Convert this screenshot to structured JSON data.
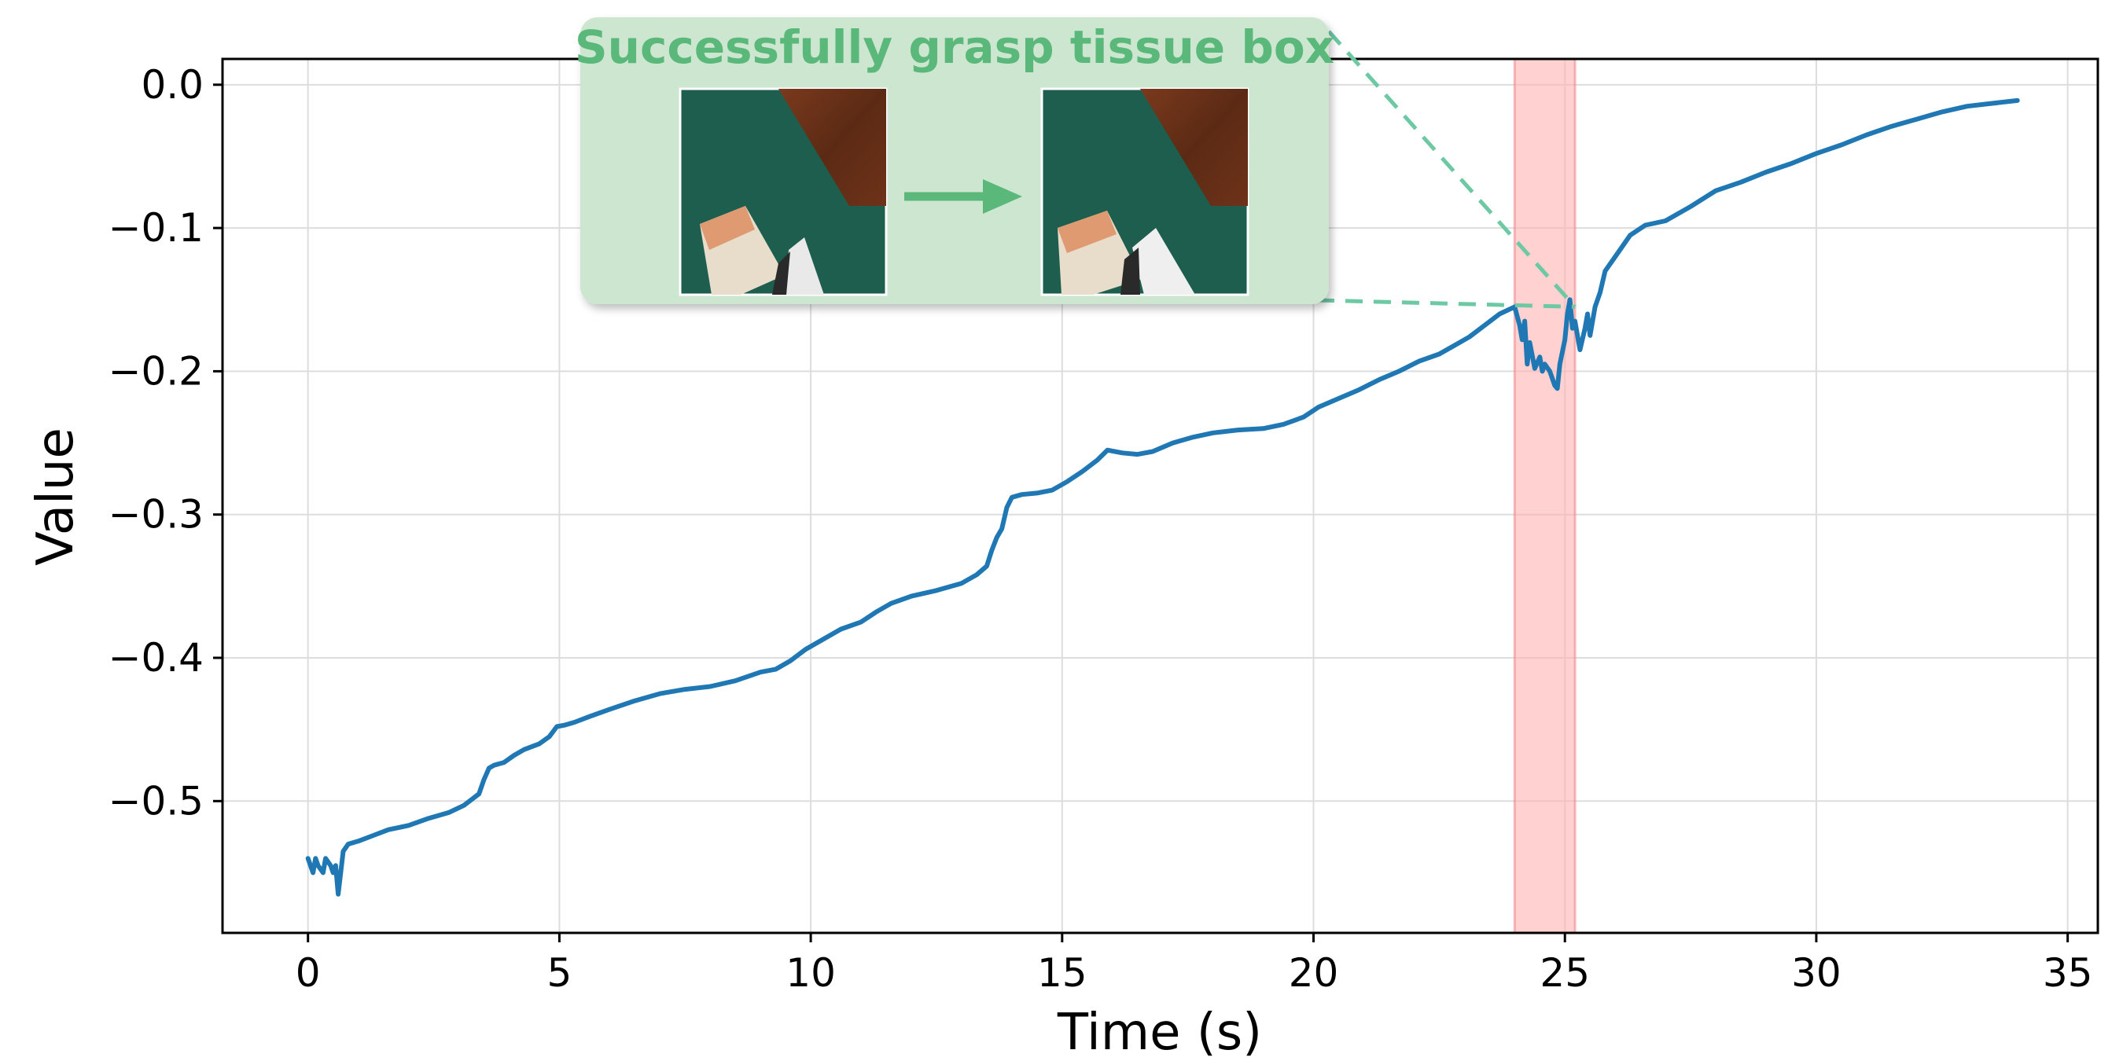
{
  "chart_data": {
    "type": "line",
    "title": "",
    "xlabel": "Time (s)",
    "ylabel": "Value",
    "xlim": [
      -1.7,
      35.6
    ],
    "ylim": [
      -0.592,
      0.018
    ],
    "xticks": [
      0,
      5,
      10,
      15,
      20,
      25,
      30,
      35
    ],
    "xtick_labels": [
      "0",
      "5",
      "10",
      "15",
      "20",
      "25",
      "30",
      "35"
    ],
    "yticks": [
      0.0,
      -0.1,
      -0.2,
      -0.3,
      -0.4,
      -0.5
    ],
    "ytick_labels": [
      "0.0",
      "−0.1",
      "−0.2",
      "−0.3",
      "−0.4",
      "−0.5"
    ],
    "grid": true,
    "series": [
      {
        "color": "#1f77b4",
        "x": [
          0.0,
          0.1,
          0.15,
          0.2,
          0.3,
          0.35,
          0.45,
          0.5,
          0.55,
          0.6,
          0.7,
          0.8,
          1.0,
          1.3,
          1.6,
          2.0,
          2.4,
          2.8,
          3.1,
          3.4,
          3.5,
          3.6,
          3.7,
          3.9,
          4.1,
          4.3,
          4.6,
          4.8,
          4.95,
          5.1,
          5.3,
          5.6,
          6.0,
          6.5,
          7.0,
          7.5,
          8.0,
          8.5,
          9.0,
          9.3,
          9.6,
          9.9,
          10.2,
          10.6,
          11.0,
          11.3,
          11.6,
          12.0,
          12.5,
          13.0,
          13.3,
          13.5,
          13.6,
          13.7,
          13.8,
          13.9,
          14.0,
          14.2,
          14.5,
          14.8,
          15.1,
          15.4,
          15.7,
          15.9,
          16.2,
          16.5,
          16.8,
          17.2,
          17.6,
          18.0,
          18.5,
          19.0,
          19.4,
          19.8,
          20.1,
          20.5,
          20.9,
          21.3,
          21.7,
          22.1,
          22.5,
          22.8,
          23.1,
          23.4,
          23.7,
          24.0,
          24.1,
          24.15,
          24.2,
          24.25,
          24.3,
          24.4,
          24.5,
          24.55,
          24.6,
          24.7,
          24.8,
          24.85,
          24.9,
          25.0,
          25.05,
          25.1,
          25.15,
          25.2,
          25.3,
          25.4,
          25.45,
          25.5,
          25.6,
          25.7,
          25.8,
          26.0,
          26.3,
          26.6,
          27.0,
          27.5,
          28.0,
          28.5,
          29.0,
          29.5,
          30.0,
          30.5,
          31.0,
          31.5,
          32.0,
          32.5,
          33.0,
          33.5,
          34.0
        ],
        "values": [
          -0.54,
          -0.55,
          -0.54,
          -0.545,
          -0.55,
          -0.54,
          -0.545,
          -0.55,
          -0.545,
          -0.565,
          -0.535,
          -0.53,
          -0.528,
          -0.524,
          -0.52,
          -0.517,
          -0.512,
          -0.508,
          -0.503,
          -0.495,
          -0.485,
          -0.477,
          -0.475,
          -0.473,
          -0.468,
          -0.464,
          -0.46,
          -0.455,
          -0.448,
          -0.447,
          -0.445,
          -0.441,
          -0.436,
          -0.43,
          -0.425,
          -0.422,
          -0.42,
          -0.416,
          -0.41,
          -0.408,
          -0.402,
          -0.394,
          -0.388,
          -0.38,
          -0.375,
          -0.368,
          -0.362,
          -0.357,
          -0.353,
          -0.348,
          -0.342,
          -0.336,
          -0.325,
          -0.316,
          -0.31,
          -0.295,
          -0.288,
          -0.286,
          -0.285,
          -0.283,
          -0.277,
          -0.27,
          -0.262,
          -0.255,
          -0.257,
          -0.258,
          -0.256,
          -0.25,
          -0.246,
          -0.243,
          -0.241,
          -0.24,
          -0.237,
          -0.232,
          -0.225,
          -0.219,
          -0.213,
          -0.206,
          -0.2,
          -0.193,
          -0.188,
          -0.182,
          -0.176,
          -0.168,
          -0.16,
          -0.155,
          -0.168,
          -0.178,
          -0.165,
          -0.195,
          -0.18,
          -0.198,
          -0.19,
          -0.2,
          -0.195,
          -0.2,
          -0.21,
          -0.212,
          -0.195,
          -0.178,
          -0.16,
          -0.15,
          -0.17,
          -0.165,
          -0.185,
          -0.17,
          -0.16,
          -0.175,
          -0.155,
          -0.145,
          -0.13,
          -0.12,
          -0.105,
          -0.098,
          -0.095,
          -0.085,
          -0.074,
          -0.068,
          -0.061,
          -0.055,
          -0.048,
          -0.042,
          -0.035,
          -0.029,
          -0.024,
          -0.019,
          -0.015,
          -0.013,
          -0.011
        ]
      }
    ],
    "highlight_span": {
      "x_start": 24.0,
      "x_end": 25.2,
      "color": "#ffb3b3"
    },
    "annotation": {
      "text": "Successfully grasp tissue box",
      "text_color": "#5ab87a",
      "box_fill": "#cde6cf",
      "arrow_color": "#5ab87a",
      "connector_color": "#6cc9a4",
      "target": {
        "x": 25.2,
        "y": -0.155
      }
    }
  }
}
